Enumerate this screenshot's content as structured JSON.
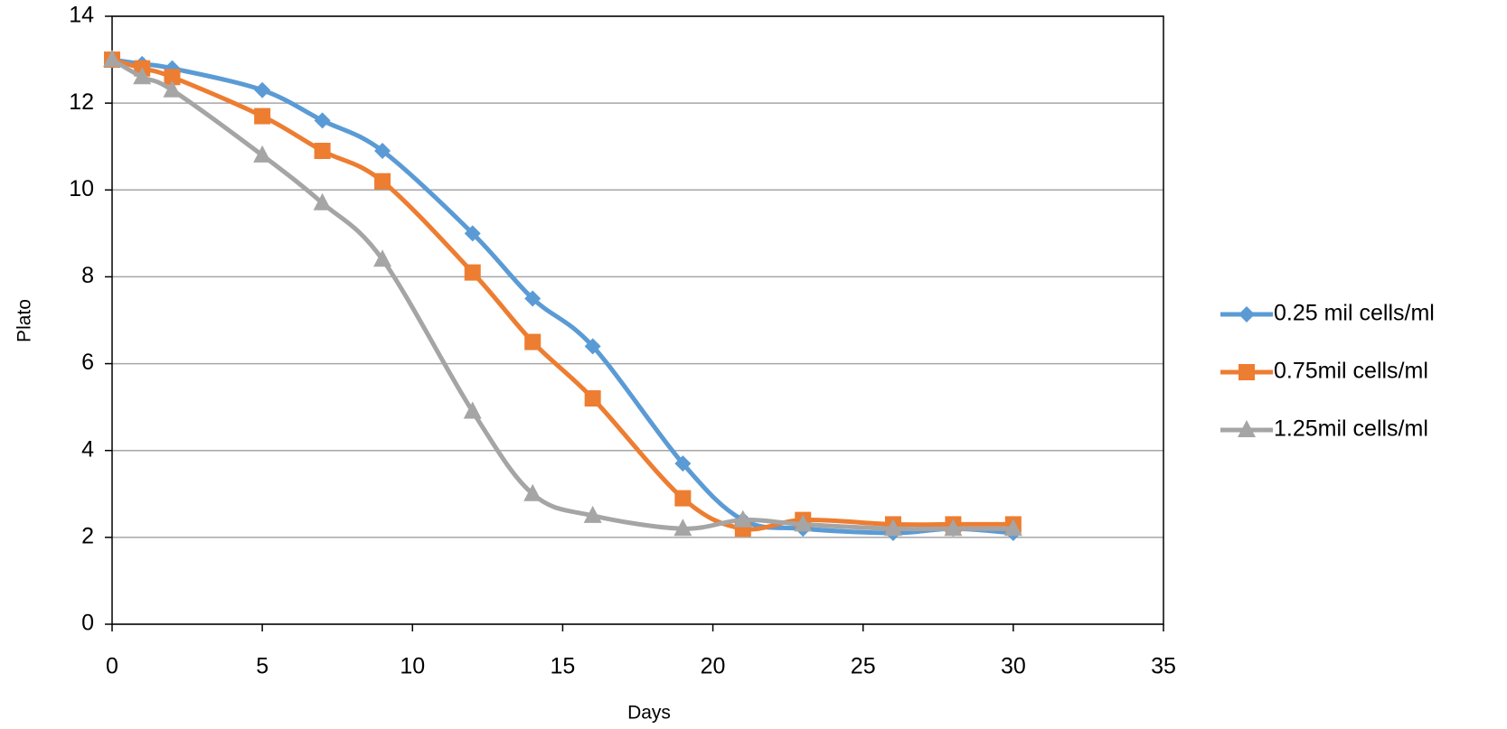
{
  "chart_data": {
    "type": "line",
    "x_label": "Days",
    "y_label": "Plato",
    "x": [
      0,
      1,
      2,
      5,
      7,
      9,
      12,
      14,
      16,
      19,
      21,
      23,
      26,
      28,
      30
    ],
    "series": [
      {
        "name": "0.25 mil cells/ml",
        "color": "#5b9bd5",
        "marker": "diamond",
        "values": [
          13,
          12.9,
          12.8,
          12.3,
          11.6,
          10.9,
          9.0,
          7.5,
          6.4,
          3.7,
          2.4,
          2.2,
          2.1,
          2.2,
          2.1
        ]
      },
      {
        "name": "0.75mil cells/ml",
        "color": "#ed7d31",
        "marker": "square",
        "values": [
          13,
          12.8,
          12.6,
          11.7,
          10.9,
          10.2,
          8.1,
          6.5,
          5.2,
          2.9,
          2.2,
          2.4,
          2.3,
          2.3,
          2.3
        ]
      },
      {
        "name": "1.25mil cells/ml",
        "color": "#a5a5a5",
        "marker": "triangle",
        "values": [
          13,
          12.6,
          12.3,
          10.8,
          9.7,
          8.4,
          4.9,
          3.0,
          2.5,
          2.2,
          2.4,
          2.3,
          2.2,
          2.2,
          2.2
        ]
      }
    ],
    "xlim": [
      0,
      35
    ],
    "xticks": [
      0,
      5,
      10,
      15,
      20,
      25,
      30,
      35
    ],
    "ylim": [
      0,
      14
    ],
    "yticks": [
      0,
      2,
      4,
      6,
      8,
      10,
      12,
      14
    ],
    "grid": true,
    "smooth": true,
    "legend": "right"
  }
}
